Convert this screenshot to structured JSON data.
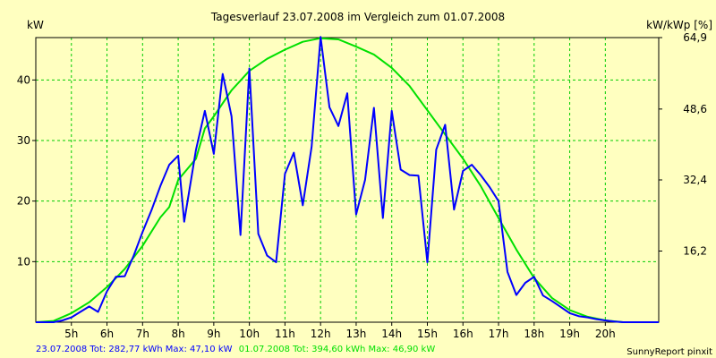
{
  "chart_data": {
    "type": "line",
    "title": "Tagesverlauf 23.07.2008 im Vergleich zum 01.07.2008",
    "ylabel_left": "kW",
    "ylabel_right": "kW/kWp [%]",
    "xlim": [
      4.0,
      21.5
    ],
    "ylim": [
      0,
      47
    ],
    "x_ticks": [
      5,
      6,
      7,
      8,
      9,
      10,
      11,
      12,
      13,
      14,
      15,
      16,
      17,
      18,
      19,
      20
    ],
    "x_tick_labels": [
      "5h",
      "6h",
      "7h",
      "8h",
      "9h",
      "10h",
      "11h",
      "12h",
      "13h",
      "14h",
      "15h",
      "16h",
      "17h",
      "18h",
      "19h",
      "20h"
    ],
    "y_ticks": [
      10,
      20,
      30,
      40
    ],
    "y_tick_labels": [
      "10",
      "20",
      "30",
      "40"
    ],
    "y2_ticks": [
      11.75,
      23.5,
      35.2,
      47.0
    ],
    "y2_tick_labels": [
      "16,2",
      "32,4",
      "48,6",
      "64,9"
    ],
    "grid": true,
    "series": [
      {
        "name": "23.07.2008",
        "color": "#0000ff",
        "x": [
          4.0,
          4.5,
          4.75,
          5.0,
          5.25,
          5.5,
          5.75,
          6.0,
          6.25,
          6.5,
          6.75,
          7.0,
          7.25,
          7.5,
          7.75,
          8.0,
          8.17,
          8.5,
          8.75,
          9.0,
          9.25,
          9.5,
          9.75,
          10.0,
          10.25,
          10.5,
          10.75,
          11.0,
          11.25,
          11.5,
          11.75,
          12.0,
          12.25,
          12.5,
          12.75,
          13.0,
          13.25,
          13.5,
          13.75,
          14.0,
          14.25,
          14.5,
          14.75,
          15.0,
          15.25,
          15.5,
          15.75,
          16.0,
          16.25,
          16.5,
          16.75,
          17.0,
          17.25,
          17.5,
          17.75,
          18.0,
          18.25,
          18.5,
          18.75,
          19.0,
          19.25,
          19.5,
          19.75,
          20.0,
          20.25,
          20.5,
          20.75,
          21.0,
          21.25,
          21.5
        ],
        "values": [
          0,
          0,
          0.3,
          0.8,
          1.7,
          2.6,
          1.7,
          5.1,
          7.5,
          7.6,
          11.0,
          14.9,
          18.5,
          22.5,
          26.0,
          27.5,
          16.6,
          28.5,
          34.9,
          27.8,
          41.0,
          34.0,
          14.4,
          41.9,
          14.6,
          11.0,
          9.9,
          24.5,
          28.0,
          19.3,
          29.0,
          47.1,
          35.5,
          32.4,
          37.8,
          17.8,
          23.5,
          35.4,
          17.2,
          34.9,
          25.2,
          24.3,
          24.2,
          9.9,
          28.5,
          32.6,
          18.6,
          25.0,
          26.0,
          24.3,
          22.3,
          20.0,
          8.3,
          4.5,
          6.5,
          7.5,
          4.4,
          3.5,
          2.5,
          1.5,
          1.0,
          0.8,
          0.5,
          0.3,
          0.1,
          0,
          0,
          0,
          0,
          0
        ]
      },
      {
        "name": "01.07.2008",
        "color": "#00e000",
        "x": [
          4.0,
          4.5,
          5.0,
          5.5,
          6.0,
          6.5,
          7.0,
          7.5,
          7.75,
          8.0,
          8.5,
          8.75,
          9.0,
          9.5,
          10.0,
          10.5,
          11.0,
          11.5,
          12.0,
          12.5,
          13.0,
          13.5,
          14.0,
          14.5,
          15.0,
          15.5,
          16.0,
          16.5,
          17.0,
          17.5,
          18.0,
          18.5,
          19.0,
          19.5,
          20.0,
          20.5,
          21.0,
          21.5
        ],
        "values": [
          0,
          0.2,
          1.5,
          3.3,
          5.8,
          8.8,
          12.6,
          17.3,
          19.0,
          23.5,
          27.0,
          32.0,
          34.0,
          38.3,
          41.5,
          43.5,
          45.0,
          46.3,
          46.9,
          46.7,
          45.5,
          44.2,
          42.0,
          39.0,
          35.0,
          31.0,
          27.0,
          22.5,
          17.2,
          12.0,
          7.3,
          4.0,
          2.0,
          0.9,
          0.3,
          0,
          0,
          0
        ]
      }
    ],
    "footer": {
      "series1_text": "23.07.2008 Tot: 282,77 kWh Max: 47,10 kW",
      "series2_text": "01.07.2008 Tot: 394,60 kWh Max: 46,90 kW",
      "credit": "SunnyReport pinxit"
    }
  }
}
